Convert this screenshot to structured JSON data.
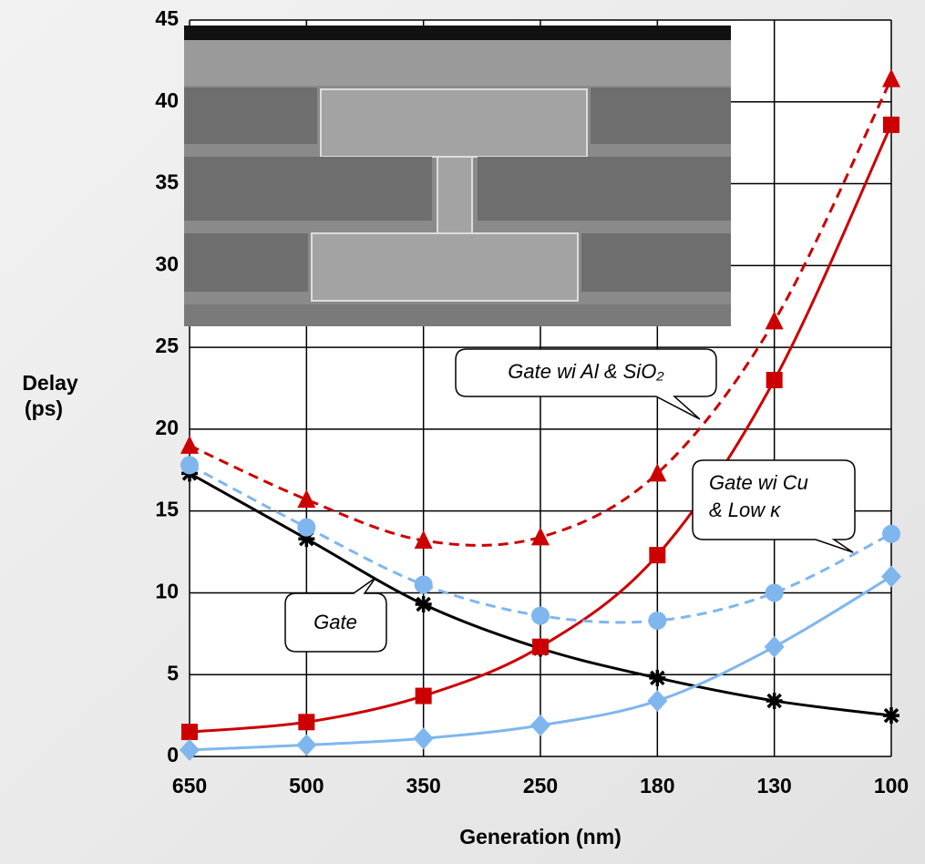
{
  "chart_data": {
    "type": "line",
    "xlabel": "Generation (nm)",
    "ylabel": [
      "Delay",
      "(ps)"
    ],
    "categories": [
      "650",
      "500",
      "350",
      "250",
      "180",
      "130",
      "100"
    ],
    "ylim": [
      0,
      45
    ],
    "yticks": [
      0,
      5,
      10,
      15,
      20,
      25,
      30,
      35,
      40,
      45
    ],
    "grid": true,
    "series": [
      {
        "color": "#000000",
        "marker": "asterisk",
        "dashed": false,
        "values": [
          17.3,
          13.3,
          9.3,
          6.6,
          4.8,
          3.4,
          2.5
        ]
      },
      {
        "color": "#cc0000",
        "marker": "square",
        "dashed": false,
        "values": [
          1.5,
          2.1,
          3.7,
          6.7,
          12.3,
          23.0,
          38.6
        ]
      },
      {
        "color": "#cc0000",
        "marker": "triangle",
        "dashed": true,
        "values": [
          19.0,
          15.7,
          13.2,
          13.4,
          17.3,
          26.6,
          41.4
        ]
      },
      {
        "color": "#7fb6ee",
        "marker": "circle",
        "dashed": true,
        "values": [
          17.8,
          14.0,
          10.5,
          8.6,
          8.3,
          10.0,
          13.6
        ]
      },
      {
        "color": "#7fb6ee",
        "marker": "diamond",
        "dashed": false,
        "values": [
          0.4,
          0.7,
          1.1,
          1.9,
          3.4,
          6.7,
          11.0
        ]
      }
    ],
    "annotations": [
      "Gate wi Al & SiO₂",
      [
        "Gate wi Cu",
        "& Low κ"
      ],
      "Gate"
    ]
  }
}
